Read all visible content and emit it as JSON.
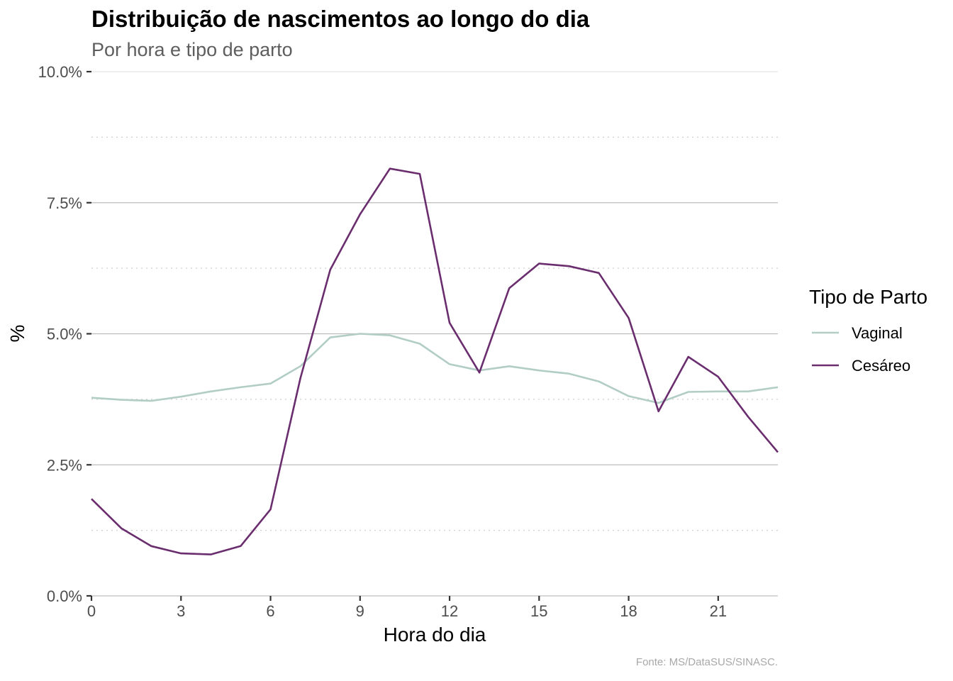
{
  "chart_data": {
    "type": "line",
    "title": "Distribuição de nascimentos ao longo do dia",
    "subtitle": "Por hora e tipo de parto",
    "xlabel": "Hora do dia",
    "ylabel": "%",
    "caption": "Fonte: MS/DataSUS/SINASC.",
    "xlim": [
      0,
      23
    ],
    "ylim": [
      0,
      0.1
    ],
    "x_ticks": [
      0,
      3,
      6,
      9,
      12,
      15,
      18,
      21
    ],
    "x_tick_labels": [
      "0",
      "3",
      "6",
      "9",
      "12",
      "15",
      "18",
      "21"
    ],
    "y_ticks": [
      0,
      0.025,
      0.05,
      0.075,
      0.1
    ],
    "y_tick_labels": [
      "0.0%",
      "2.5%",
      "5.0%",
      "7.5%",
      "10.0%"
    ],
    "y_minor_ticks": [
      0.0125,
      0.0375,
      0.0625,
      0.0875
    ],
    "grid": true,
    "legend": {
      "title": "Tipo de Parto",
      "position": "right"
    },
    "x": [
      0,
      1,
      2,
      3,
      4,
      5,
      6,
      7,
      8,
      9,
      10,
      11,
      12,
      13,
      14,
      15,
      16,
      17,
      18,
      19,
      20,
      21,
      22,
      23
    ],
    "series": [
      {
        "name": "Vaginal",
        "color": "#b2cdc6",
        "values": [
          0.0378,
          0.0374,
          0.0372,
          0.038,
          0.039,
          0.0398,
          0.0405,
          0.0438,
          0.0493,
          0.05,
          0.0497,
          0.0481,
          0.0442,
          0.043,
          0.0438,
          0.043,
          0.0424,
          0.0409,
          0.0381,
          0.0368,
          0.0389,
          0.039,
          0.039,
          0.0398
        ]
      },
      {
        "name": "Cesáreo",
        "color": "#6a2d6e",
        "values": [
          0.0185,
          0.0129,
          0.0095,
          0.0081,
          0.0079,
          0.0095,
          0.0165,
          0.0415,
          0.0622,
          0.0728,
          0.0815,
          0.0805,
          0.0521,
          0.0426,
          0.0587,
          0.0634,
          0.0629,
          0.0616,
          0.053,
          0.0352,
          0.0456,
          0.0418,
          0.0342,
          0.0274
        ]
      }
    ]
  }
}
